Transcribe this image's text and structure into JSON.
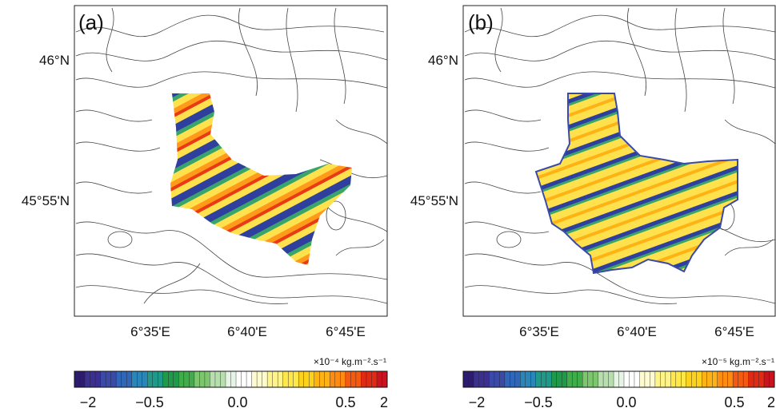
{
  "panels": [
    {
      "label": "(a)",
      "lat_labels": [
        "46°N",
        "45°55'N"
      ],
      "lon_labels": [
        "6°35'E",
        "6°40'E",
        "6°45'E"
      ],
      "unit": "×10⁻⁴ kg.m⁻².s⁻¹",
      "colorbar_ticks": [
        "−2",
        "−0.5",
        "0.0",
        "0.5",
        "2"
      ]
    },
    {
      "label": "(b)",
      "lat_labels": [
        "46°N",
        "45°55'N"
      ],
      "lon_labels": [
        "6°35'E",
        "6°40'E",
        "6°45'E"
      ],
      "unit": "×10⁻⁵ kg.m⁻².s⁻¹",
      "colorbar_ticks": [
        "−2",
        "−0.5",
        "0.0",
        "0.5",
        "2"
      ]
    }
  ],
  "colorbar_colors": [
    "#2d1b6e",
    "#3b2f8f",
    "#3a4aa8",
    "#2f66b8",
    "#2a86b8",
    "#1f9a8a",
    "#1e9a4a",
    "#3fae4a",
    "#7cc66e",
    "#b7dfae",
    "#e6f4e6",
    "#ffffff",
    "#fffbd0",
    "#fff48a",
    "#ffe84a",
    "#ffd21a",
    "#ffb214",
    "#ff8c10",
    "#f55a10",
    "#e02a14",
    "#c8141e"
  ]
}
